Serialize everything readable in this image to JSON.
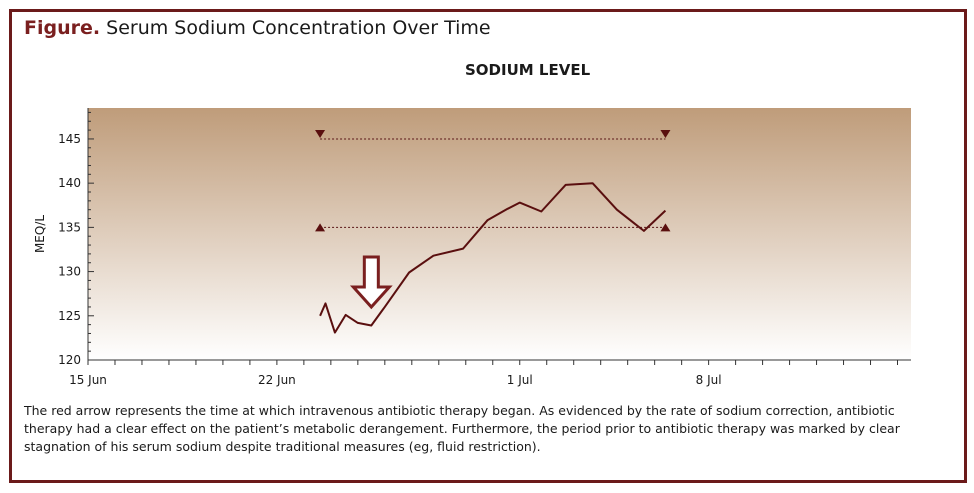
{
  "figure": {
    "label": "Figure.",
    "title": "Serum Sodium Concentration Over Time"
  },
  "chart_data": {
    "type": "line",
    "title": "SODIUM LEVEL",
    "xlabel": "",
    "ylabel": "MEQ/L",
    "ylim": [
      120,
      148.5
    ],
    "xlim": [
      0,
      30.5
    ],
    "x_tick_labels": [
      {
        "label": "15 Jun",
        "x": 0
      },
      {
        "label": "22 Jun",
        "x": 7
      },
      {
        "label": "1 Jul",
        "x": 16
      },
      {
        "label": "8 Jul",
        "x": 23
      }
    ],
    "y_tick_labels": [
      120,
      125,
      130,
      135,
      140,
      145
    ],
    "series": [
      {
        "name": "Serum sodium",
        "color": "#5a0f0f",
        "x": [
          8.6,
          8.8,
          9.15,
          9.55,
          10.0,
          10.5,
          11.0,
          11.9,
          12.8,
          13.9,
          14.8,
          15.55,
          16.0,
          16.8,
          17.7,
          18.7,
          19.6,
          20.6,
          21.4
        ],
        "y": [
          125.0,
          126.4,
          123.1,
          125.1,
          124.2,
          123.9,
          126.0,
          129.9,
          131.8,
          132.6,
          135.8,
          137.1,
          137.8,
          136.8,
          139.8,
          140.0,
          137.0,
          134.6,
          136.9
        ]
      }
    ],
    "reference_lines": [
      {
        "name": "upper limit",
        "y": 145,
        "x_start": 8.6,
        "x_end": 21.4,
        "marker": "down-triangle"
      },
      {
        "name": "lower limit",
        "y": 135,
        "x_start": 8.6,
        "x_end": 21.4,
        "marker": "up-triangle"
      }
    ],
    "annotations": [
      {
        "type": "arrow",
        "direction": "down",
        "x": 10.5,
        "y_tip": 126,
        "meaning": "start of intravenous antibiotic therapy"
      }
    ],
    "colors": {
      "background_top": "#bf9c7a",
      "background_bottom": "#ffffff",
      "line": "#5a0f0f",
      "arrow": "#7a1f1f",
      "frame": "#6b1a1a"
    }
  },
  "caption": "The red arrow represents the time at which intravenous antibiotic therapy began. As evidenced by the rate of sodium correction, antibiotic therapy had a clear effect on the patient’s metabolic derangement. Furthermore, the period prior to antibiotic therapy was marked by clear stagnation of his serum sodium despite traditional measures (eg, fluid restriction)."
}
